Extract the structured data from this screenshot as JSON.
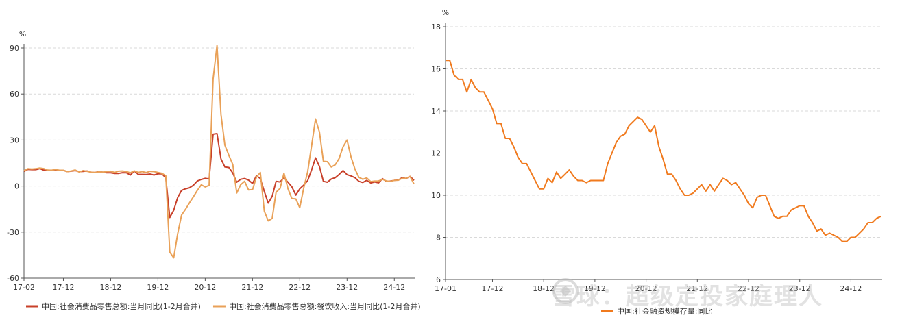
{
  "chart_data": [
    {
      "type": "line",
      "yunit": "%",
      "ylim": [
        -60,
        90
      ],
      "yticks": [
        -60,
        -30,
        0,
        30,
        60,
        90
      ],
      "xticks": [
        "17-02",
        "17-12",
        "18-12",
        "19-12",
        "20-12",
        "21-12",
        "22-12",
        "23-12",
        "24-12"
      ],
      "grid": true,
      "legend_position": "bottom",
      "series": [
        {
          "name": "中国:社会消费品零售总额:当月同比(1-2月合并)",
          "color": "#c8402a",
          "values": [
            9.5,
            10.9,
            10.7,
            10.7,
            11.4,
            10.4,
            10.1,
            10.3,
            10.3,
            10.2,
            10.2,
            9.4,
            9.7,
            10.1,
            9.4,
            9.5,
            9.8,
            9.0,
            8.8,
            9.4,
            9.0,
            8.6,
            8.6,
            8.2,
            8.2,
            8.7,
            8.6,
            7.2,
            9.8,
            7.6,
            7.6,
            7.5,
            7.8,
            7.2,
            8.0,
            8.0,
            5.3,
            -20.5,
            -15.8,
            -7.5,
            -2.8,
            -1.8,
            -1.1,
            0.5,
            3.3,
            4.3,
            5.0,
            4.6,
            33.8,
            34.2,
            17.7,
            12.4,
            12.1,
            8.5,
            2.5,
            4.4,
            4.9,
            3.9,
            1.7,
            6.7,
            4.9,
            -3.5,
            -11.1,
            -6.7,
            3.1,
            2.7,
            5.4,
            2.5,
            -0.5,
            -5.9,
            -1.8,
            0.6,
            3.5,
            10.6,
            18.4,
            12.7,
            3.1,
            2.5,
            4.6,
            5.5,
            7.6,
            10.1,
            7.4,
            6.6,
            5.5,
            3.1,
            2.3,
            3.7,
            2.0,
            2.7,
            2.1,
            4.8,
            3.0,
            3.2,
            3.7,
            3.9,
            5.5,
            4.9,
            6.3,
            3.7
          ]
        },
        {
          "name": "中国:社会消费品零售总额:餐饮收入:当月同比(1-2月合并)",
          "color": "#e9a158",
          "values": [
            10.0,
            11.3,
            11.1,
            11.3,
            11.8,
            11.4,
            10.4,
            10.3,
            10.8,
            10.3,
            10.3,
            9.4,
            9.8,
            10.5,
            9.1,
            10.1,
            9.6,
            9.0,
            8.8,
            9.3,
            9.1,
            9.4,
            9.7,
            8.9,
            9.7,
            9.8,
            9.4,
            8.6,
            9.9,
            8.9,
            9.4,
            8.8,
            9.6,
            9.4,
            8.9,
            8.3,
            6.7,
            -43.1,
            -46.8,
            -31.1,
            -18.9,
            -15.2,
            -11.0,
            -7.0,
            -2.8,
            0.8,
            -0.6,
            0.5,
            69.8,
            91.6,
            46.6,
            26.6,
            20.0,
            14.1,
            -4.5,
            0.9,
            3.1,
            -2.5,
            -2.3,
            5.7,
            8.9,
            -16.4,
            -22.7,
            -21.1,
            -4.0,
            -1.5,
            8.4,
            -1.7,
            -8.1,
            -8.4,
            -14.1,
            -1.3,
            9.2,
            26.3,
            43.8,
            35.1,
            16.1,
            15.9,
            12.4,
            13.9,
            18.0,
            25.6,
            30.0,
            19.1,
            11.1,
            5.7,
            4.4,
            5.3,
            2.9,
            3.2,
            3.3,
            4.4,
            3.3,
            3.0,
            3.7,
            3.8,
            5.0,
            5.1,
            6.2,
            1.3
          ]
        }
      ]
    },
    {
      "type": "line",
      "yunit": "%",
      "ylim": [
        6,
        18
      ],
      "yticks": [
        6,
        8,
        10,
        12,
        14,
        16,
        18
      ],
      "xticks": [
        "17-01",
        "17-12",
        "18-12",
        "19-12",
        "20-12",
        "21-12",
        "22-12",
        "23-12",
        "24-12"
      ],
      "grid": true,
      "legend_position": "bottom",
      "series": [
        {
          "name": "中国:社会融资规模存量:同比",
          "color": "#f07a1e",
          "values": [
            16.4,
            16.4,
            15.7,
            15.5,
            15.5,
            14.9,
            15.5,
            15.1,
            14.9,
            14.9,
            14.5,
            14.1,
            13.4,
            13.4,
            12.7,
            12.7,
            12.3,
            11.8,
            11.5,
            11.5,
            11.1,
            10.7,
            10.3,
            10.3,
            10.8,
            10.6,
            11.1,
            10.8,
            11.0,
            11.2,
            10.9,
            10.7,
            10.7,
            10.6,
            10.7,
            10.7,
            10.7,
            10.7,
            11.5,
            12.0,
            12.5,
            12.8,
            12.9,
            13.3,
            13.5,
            13.7,
            13.6,
            13.3,
            13.0,
            13.3,
            12.3,
            11.7,
            11.0,
            11.0,
            10.7,
            10.3,
            10.0,
            10.0,
            10.1,
            10.3,
            10.5,
            10.2,
            10.5,
            10.2,
            10.5,
            10.8,
            10.7,
            10.5,
            10.6,
            10.3,
            10.0,
            9.6,
            9.4,
            9.9,
            10.0,
            10.0,
            9.5,
            9.0,
            8.9,
            9.0,
            9.0,
            9.3,
            9.4,
            9.5,
            9.5,
            9.0,
            8.7,
            8.3,
            8.4,
            8.1,
            8.2,
            8.1,
            8.0,
            7.8,
            7.8,
            8.0,
            8.0,
            8.2,
            8.4,
            8.7,
            8.7,
            8.9,
            9.0
          ]
        }
      ]
    }
  ],
  "watermark": "雪球：超级定投家庭理人"
}
